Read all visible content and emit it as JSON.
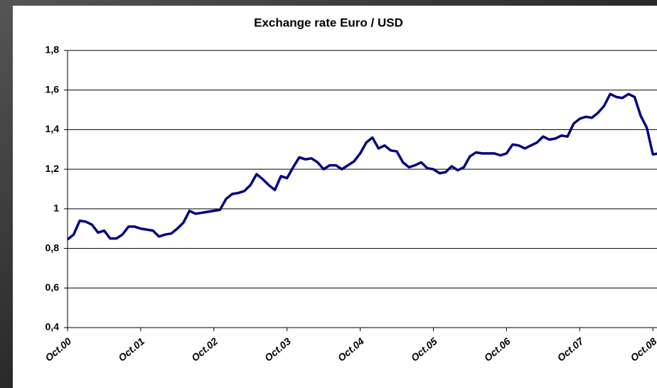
{
  "chart_data": {
    "type": "line",
    "title": "Exchange rate Euro / USD",
    "categories": [
      "Oct.00",
      null,
      null,
      null,
      null,
      null,
      null,
      null,
      null,
      null,
      null,
      null,
      "Oct.01",
      null,
      null,
      null,
      null,
      null,
      null,
      null,
      null,
      null,
      null,
      null,
      "Oct.02",
      null,
      null,
      null,
      null,
      null,
      null,
      null,
      null,
      null,
      null,
      null,
      "Oct.03",
      null,
      null,
      null,
      null,
      null,
      null,
      null,
      null,
      null,
      null,
      null,
      "Oct.04",
      null,
      null,
      null,
      null,
      null,
      null,
      null,
      null,
      null,
      null,
      null,
      "Oct.05",
      null,
      null,
      null,
      null,
      null,
      null,
      null,
      null,
      null,
      null,
      null,
      "Oct.06",
      null,
      null,
      null,
      null,
      null,
      null,
      null,
      null,
      null,
      null,
      null,
      "Oct.07",
      null,
      null,
      null,
      null,
      null,
      null,
      null,
      null,
      null,
      null,
      null,
      "Oct.08",
      null
    ],
    "series": [
      {
        "name": "Euro / USD",
        "color": "#000080",
        "values": [
          0.845,
          0.87,
          0.94,
          0.935,
          0.92,
          0.88,
          0.89,
          0.85,
          0.85,
          0.87,
          0.91,
          0.91,
          0.9,
          0.895,
          0.89,
          0.86,
          0.87,
          0.875,
          0.9,
          0.93,
          0.99,
          0.975,
          0.98,
          0.985,
          0.99,
          0.995,
          1.05,
          1.075,
          1.08,
          1.09,
          1.12,
          1.175,
          1.15,
          1.12,
          1.095,
          1.165,
          1.155,
          1.21,
          1.26,
          1.25,
          1.255,
          1.235,
          1.2,
          1.22,
          1.22,
          1.2,
          1.22,
          1.24,
          1.28,
          1.335,
          1.36,
          1.305,
          1.32,
          1.295,
          1.29,
          1.235,
          1.21,
          1.22,
          1.235,
          1.205,
          1.2,
          1.18,
          1.185,
          1.215,
          1.195,
          1.21,
          1.265,
          1.285,
          1.28,
          1.28,
          1.28,
          1.27,
          1.28,
          1.325,
          1.32,
          1.305,
          1.32,
          1.335,
          1.365,
          1.35,
          1.355,
          1.37,
          1.365,
          1.43,
          1.455,
          1.465,
          1.46,
          1.485,
          1.52,
          1.58,
          1.565,
          1.56,
          1.58,
          1.565,
          1.47,
          1.41,
          1.275,
          1.28
        ]
      }
    ],
    "ylim": [
      0.4,
      1.8
    ],
    "yticks": [
      {
        "value": 0.4,
        "label": "0,4"
      },
      {
        "value": 0.6,
        "label": "0,6"
      },
      {
        "value": 0.8,
        "label": "0,8"
      },
      1,
      {
        "value": 1.2,
        "label": "1,2"
      },
      {
        "value": 1.4,
        "label": "1,4"
      },
      {
        "value": 1.6,
        "label": "1,6"
      },
      {
        "value": 1.8,
        "label": "1,8"
      }
    ],
    "grid": true
  }
}
